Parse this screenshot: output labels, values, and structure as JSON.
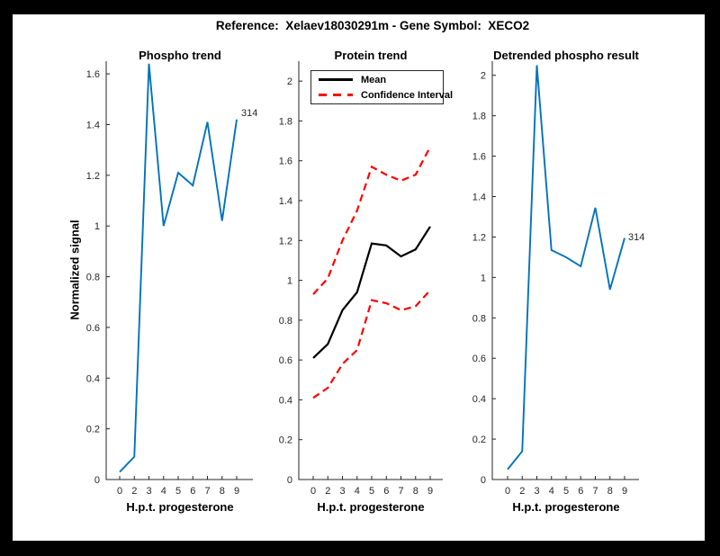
{
  "figure": {
    "title": "Reference:  Xelaev18030291m - Gene Symbol:  XECO2",
    "background_color": "#000000",
    "canvas_color": "#ffffff",
    "axis_color": "#262626"
  },
  "chart_data": [
    {
      "type": "line",
      "title": "Phospho trend",
      "xlabel": "H.p.t. progesterone",
      "ylabel": "Normalized signal",
      "x_ticks": [
        "0",
        "2",
        "3",
        "4",
        "5",
        "6",
        "7",
        "8",
        "9"
      ],
      "y_ticks": [
        "0",
        "0.2",
        "0.4",
        "0.6",
        "0.8",
        "1",
        "1.2",
        "1.4",
        "1.6"
      ],
      "ylim": [
        0,
        1.65
      ],
      "grid": false,
      "end_label": "314",
      "series": [
        {
          "name": "Phospho",
          "color": "#0072BD",
          "style": "solid",
          "width": 1.9,
          "values": [
            0.03,
            0.09,
            1.64,
            1.0,
            1.21,
            1.16,
            1.41,
            1.02,
            1.42
          ]
        }
      ]
    },
    {
      "type": "line",
      "title": "Protein trend",
      "xlabel": "H.p.t. progesterone",
      "ylabel": "",
      "x_ticks": [
        "0",
        "2",
        "3",
        "4",
        "5",
        "6",
        "7",
        "8",
        "9"
      ],
      "y_ticks": [
        "0",
        "0.2",
        "0.4",
        "0.6",
        "0.8",
        "1",
        "1.2",
        "1.4",
        "1.6",
        "1.8",
        "2"
      ],
      "ylim": [
        0,
        2.1
      ],
      "grid": false,
      "legend": {
        "position": "top-left",
        "entries": [
          {
            "label": "Mean",
            "color": "#000000",
            "style": "solid"
          },
          {
            "label": "Confidence Interval",
            "color": "#ff0000",
            "style": "dashed"
          }
        ]
      },
      "series": [
        {
          "name": "Mean",
          "color": "#000000",
          "style": "solid",
          "width": 2.2,
          "values": [
            0.61,
            0.68,
            0.85,
            0.94,
            1.185,
            1.175,
            1.12,
            1.155,
            1.27
          ]
        },
        {
          "name": "Confidence Interval upper",
          "color": "#ff0000",
          "style": "dashed",
          "width": 2.2,
          "values": [
            0.93,
            1.01,
            1.2,
            1.35,
            1.57,
            1.53,
            1.5,
            1.53,
            1.67
          ]
        },
        {
          "name": "Confidence Interval lower",
          "color": "#ff0000",
          "style": "dashed",
          "width": 2.2,
          "values": [
            0.41,
            0.46,
            0.58,
            0.65,
            0.9,
            0.885,
            0.85,
            0.87,
            0.95
          ]
        }
      ]
    },
    {
      "type": "line",
      "title": "Detrended phospho result",
      "xlabel": "H.p.t. progesterone",
      "ylabel": "",
      "x_ticks": [
        "0",
        "2",
        "3",
        "4",
        "5",
        "6",
        "7",
        "8",
        "9"
      ],
      "y_ticks": [
        "0",
        "0.2",
        "0.4",
        "0.6",
        "0.8",
        "1",
        "1.2",
        "1.4",
        "1.6",
        "1.8",
        "2"
      ],
      "ylim": [
        0,
        2.07
      ],
      "grid": false,
      "end_label": "314",
      "series": [
        {
          "name": "Detrended phospho",
          "color": "#0072BD",
          "style": "solid",
          "width": 1.9,
          "values": [
            0.05,
            0.14,
            2.05,
            1.135,
            1.1,
            1.055,
            1.345,
            0.94,
            1.195
          ]
        }
      ]
    }
  ]
}
